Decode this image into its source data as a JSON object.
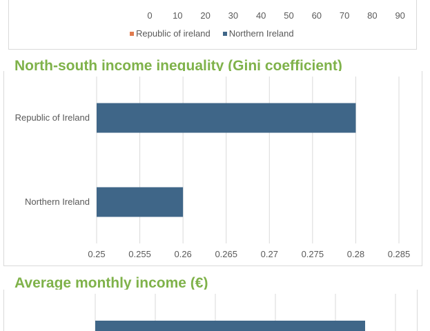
{
  "colors": {
    "republic": "#e07b4f",
    "northern": "#3f6688",
    "heading": "#7fb24a",
    "grid": "#d9d9d9"
  },
  "top_chart": {
    "ticks": [
      "0",
      "10",
      "20",
      "30",
      "40",
      "50",
      "60",
      "70",
      "80",
      "90"
    ],
    "legend": [
      {
        "label": "Republic of ireland",
        "color": "#e07b4f"
      },
      {
        "label": "Northern Ireland",
        "color": "#3f6688"
      }
    ]
  },
  "heading_gini": {
    "pre": "North-south income inequality (",
    "word": "Gini",
    "post": " coefficient)"
  },
  "heading_income": "Average monthly income (€)",
  "chart_data": [
    {
      "type": "bar",
      "orientation": "horizontal",
      "title": "North-south income inequality (Gini coefficient)",
      "categories": [
        "Republic of Ireland",
        "Northern Ireland"
      ],
      "values": [
        0.28,
        0.26
      ],
      "xlim": [
        0.25,
        0.285
      ],
      "xticks": [
        "0.25",
        "0.255",
        "0.26",
        "0.265",
        "0.27",
        "0.275",
        "0.28",
        "0.285"
      ],
      "grid": true
    }
  ]
}
